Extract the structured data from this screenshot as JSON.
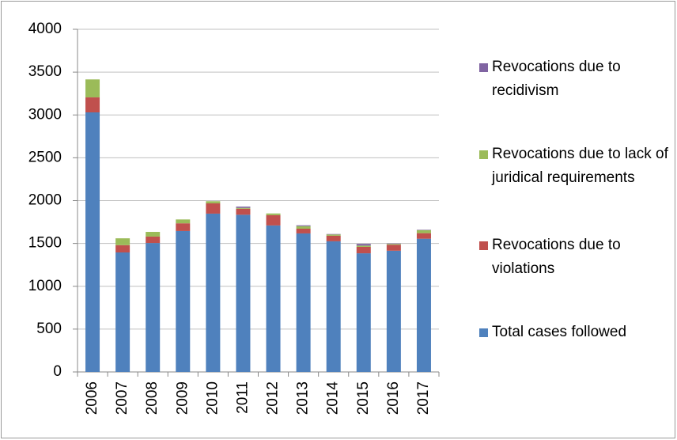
{
  "chart_data": {
    "type": "stacked-bar",
    "categories": [
      "2006",
      "2007",
      "2008",
      "2009",
      "2010",
      "2011",
      "2012",
      "2013",
      "2014",
      "2015",
      "2016",
      "2017"
    ],
    "series": [
      {
        "name": "Total cases followed",
        "color": "#4f81bd",
        "values": [
          3030,
          1395,
          1505,
          1645,
          1848,
          1835,
          1710,
          1617,
          1525,
          1385,
          1415,
          1555
        ]
      },
      {
        "name": "Revocations due to violations",
        "color": "#c0504d",
        "values": [
          175,
          85,
          75,
          90,
          120,
          70,
          120,
          55,
          65,
          75,
          70,
          65
        ]
      },
      {
        "name": "Revocations due to lack of juridical requirements",
        "color": "#9bbb59",
        "values": [
          210,
          80,
          55,
          45,
          25,
          10,
          20,
          30,
          15,
          15,
          10,
          35
        ]
      },
      {
        "name": "Revocations due to recidivism",
        "color": "#8064a2",
        "values": [
          0,
          0,
          0,
          0,
          0,
          15,
          0,
          10,
          5,
          20,
          5,
          5
        ]
      }
    ],
    "ylim": [
      0,
      4000
    ],
    "yticks": [
      0,
      500,
      1000,
      1500,
      2000,
      2500,
      3000,
      3500,
      4000
    ],
    "grid": true,
    "legend": "right"
  }
}
